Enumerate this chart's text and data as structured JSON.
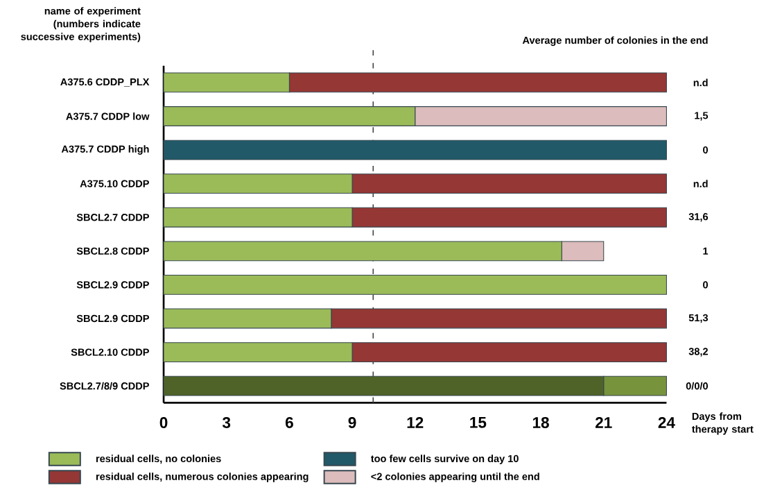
{
  "chart_data": {
    "type": "bar",
    "orientation": "horizontal",
    "stacked": true,
    "ylabel": "name of experiment (numbers indicate successive experiments)",
    "xlabel": "Days from therapy start",
    "categories": [
      "A375.6 CDDP_PLX",
      "A375.7 CDDP low",
      "A375.7 CDDP high",
      "A375.10 CDDP",
      "SBCL2.7 CDDP",
      "SBCL2.8 CDDP",
      "SBCL2.9 CDDP",
      "SBCL2.9 CDDP",
      "SBCL2.10 CDDP",
      "SBCL2.7/8/9 CDDP"
    ],
    "xlim": [
      0,
      24
    ],
    "xticks": [
      0,
      3,
      6,
      9,
      12,
      15,
      18,
      21,
      24
    ],
    "series": [
      {
        "color": "#4f6228",
        "values": [
          null,
          null,
          null,
          null,
          null,
          null,
          null,
          null,
          null,
          21
        ]
      },
      {
        "color": "#77933c",
        "values": [
          null,
          null,
          null,
          null,
          null,
          null,
          null,
          null,
          null,
          3
        ]
      },
      {
        "name": "residual cells, no colonies",
        "color": "#9bbb59",
        "values": [
          6,
          12,
          null,
          9,
          9,
          19,
          24,
          8,
          9,
          null
        ]
      },
      {
        "name": "residual cells, numerous colonies appearing",
        "color": "#953735",
        "values": [
          18,
          null,
          null,
          15,
          15,
          null,
          null,
          16,
          15,
          null
        ]
      },
      {
        "name": "too few cells survive on day 10",
        "color": "#215968",
        "values": [
          null,
          null,
          24,
          null,
          null,
          null,
          null,
          null,
          null,
          null
        ]
      },
      {
        "name": "<2 colonies appearing until the end",
        "color": "#dcbcbc",
        "values": [
          null,
          12,
          null,
          null,
          null,
          2,
          null,
          null,
          null,
          null
        ]
      }
    ],
    "ref_lines": [
      {
        "axis": "x",
        "value": 10,
        "line_style": "dashed",
        "color": "#404040"
      }
    ],
    "annotations": [
      "Average number of colonies in the end",
      "n.d",
      "1,5",
      "0",
      "n.d",
      "31,6",
      "1",
      "0",
      "51,3",
      "38,2",
      "0/0/0"
    ],
    "legend": "bottom"
  }
}
